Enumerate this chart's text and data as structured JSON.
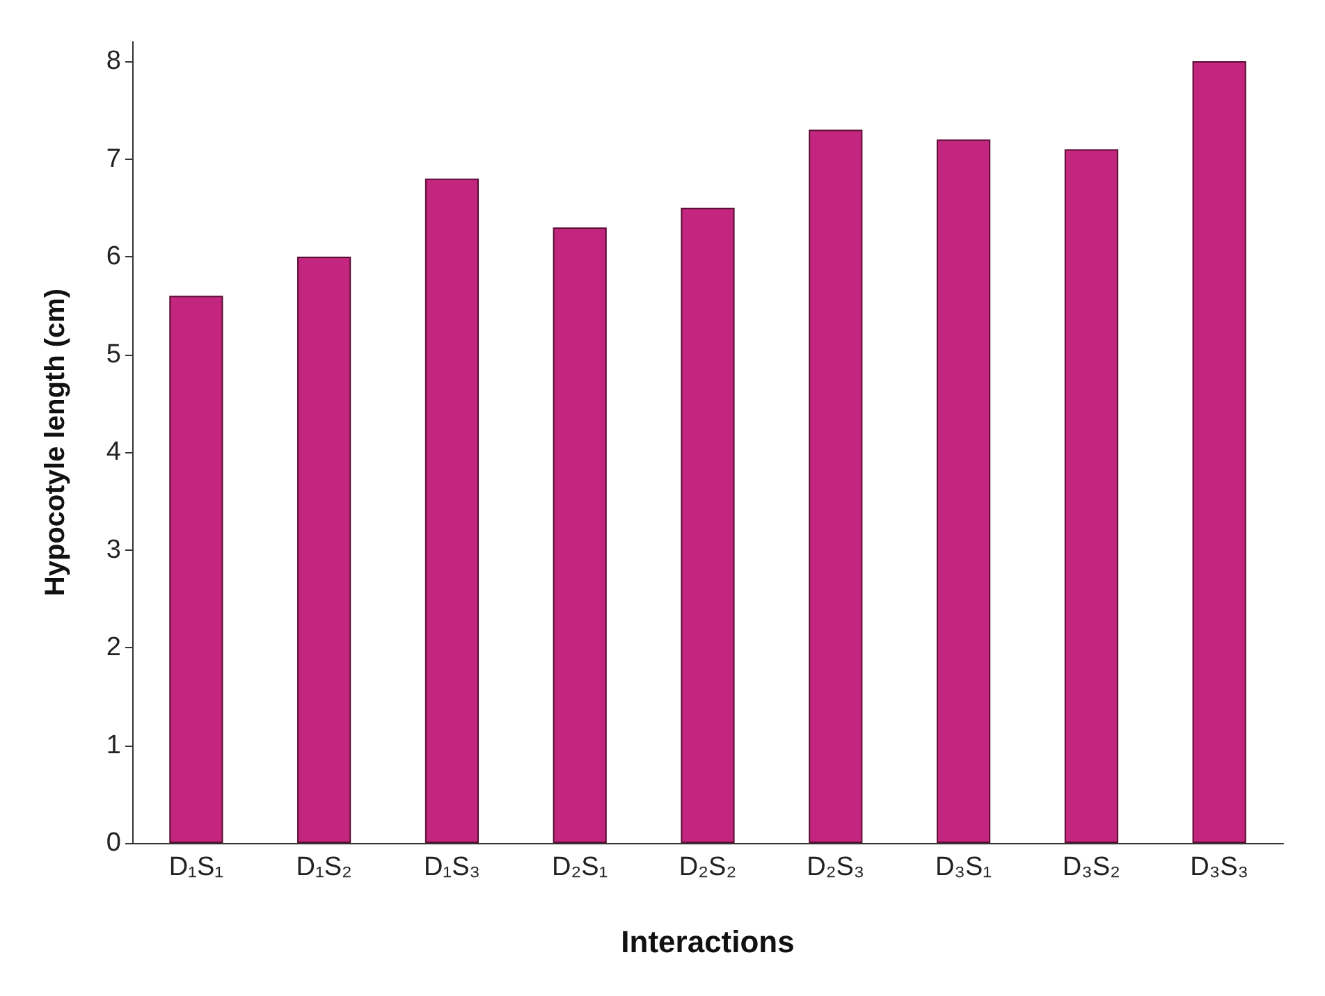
{
  "chart_data": {
    "type": "bar",
    "xlabel": "Interactions",
    "ylabel": "Hypocotyle length (cm)",
    "categories": [
      "D₁S₁",
      "D₁S₂",
      "D₁S₃",
      "D₂S₁",
      "D₂S₂",
      "D₂S₃",
      "D₃S₁",
      "D₃S₂",
      "D₃S₃"
    ],
    "values": [
      5.6,
      6.0,
      6.8,
      6.3,
      6.5,
      7.3,
      7.2,
      7.1,
      8.0
    ],
    "color": "#c2267e",
    "ylim": [
      0,
      8.2
    ],
    "yticks": [
      0,
      1,
      2,
      3,
      4,
      5,
      6,
      7,
      8
    ],
    "grid": false
  }
}
